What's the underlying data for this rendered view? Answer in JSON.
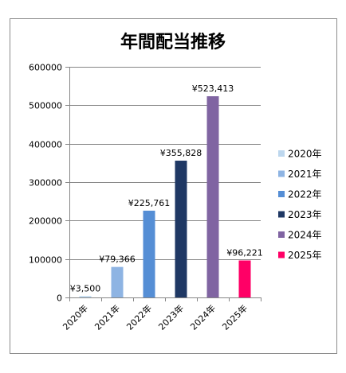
{
  "chart_data": {
    "type": "bar",
    "title": "年間配当推移",
    "categories": [
      "2020年",
      "2021年",
      "2022年",
      "2023年",
      "2024年",
      "2025年"
    ],
    "values": [
      3500,
      79366,
      225761,
      355828,
      523413,
      96221
    ],
    "data_labels": [
      "¥3,500",
      "¥79,366",
      "¥225,761",
      "¥355,828",
      "¥523,413",
      "¥96,221"
    ],
    "colors": [
      "#bdd7ee",
      "#8eb4e3",
      "#558ed5",
      "#1f3864",
      "#8064a2",
      "#ff0066"
    ],
    "ylim": [
      0,
      600000
    ],
    "yticks": [
      "0",
      "100000",
      "200000",
      "300000",
      "400000",
      "500000",
      "600000"
    ],
    "ytick_values": [
      0,
      100000,
      200000,
      300000,
      400000,
      500000,
      600000
    ],
    "grid": true,
    "legend": "right",
    "xlabel": "",
    "ylabel": ""
  },
  "frame": {
    "background": "#ffffff",
    "border_color": "#8c8c8c",
    "grid_color": "#868686",
    "axis_color": "#868686"
  }
}
